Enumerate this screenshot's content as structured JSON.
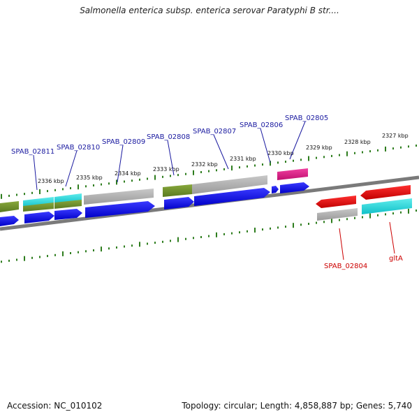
{
  "title": "Salmonella enterica subsp. enterica serovar Paratyphi B str....",
  "footer": {
    "accession": "Accession: NC_010102",
    "stats": "Topology: circular; Length: 4,858,887 bp; Genes: 5,740"
  },
  "colors": {
    "backbone": "#7f7f7f",
    "tick": "#2e7d1e",
    "blue": "#0000dd",
    "gray": "#b0b0b0",
    "olive": "#6f8f2a",
    "cyan": "#22d6d6",
    "magenta": "#e0208a",
    "red": "#dd0000",
    "label_blue": "#1a1aa0",
    "label_red": "#cc0000"
  },
  "kbp_ticks": [
    "2327 kbp",
    "2328 kbp",
    "2329 kbp",
    "2330 kbp",
    "2331 kbp",
    "2332 kbp",
    "2333 kbp",
    "2334 kbp",
    "2335 kbp",
    "2336 kbp"
  ],
  "gene_labels_top": [
    "SPAB_02811",
    "SPAB_02810",
    "SPAB_02809",
    "SPAB_02808",
    "SPAB_02807",
    "SPAB_02806",
    "SPAB_02805"
  ],
  "gene_labels_bottom": [
    "SPAB_02804",
    "gltA"
  ]
}
